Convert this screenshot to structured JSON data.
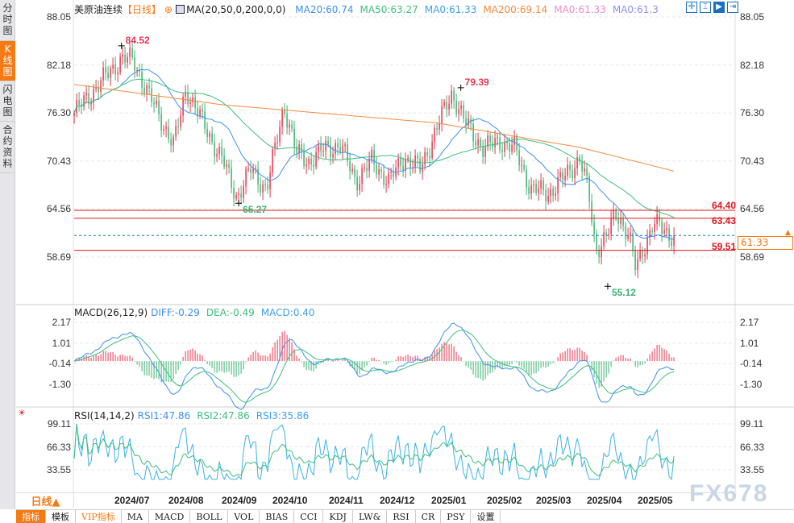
{
  "sidebar": {
    "tabs": [
      {
        "label": "分时图"
      },
      {
        "label": "K线图",
        "active": true
      },
      {
        "label": "闪电图"
      },
      {
        "label": "合约资料"
      }
    ]
  },
  "header": {
    "title": "美原油连续",
    "period_tag": "【日线】",
    "indicator": "MA(20,50,0,200,0,0)",
    "ma": [
      {
        "label": "MA20:60.74",
        "color": "#3d8ff0"
      },
      {
        "label": "MA50:63.27",
        "color": "#3cbf7e"
      },
      {
        "label": "MA0:61.33",
        "color": "#3d9ff0"
      },
      {
        "label": "MA200:69.14",
        "color": "#f5893a"
      },
      {
        "label": "MA0:61.33",
        "color": "#f08ad0"
      },
      {
        "label": "MA0:61.3",
        "color": "#8f8ff5"
      }
    ]
  },
  "toolbar_icons": [
    "crosshair-icon",
    "range-icon",
    "play-icon",
    "exit-icon"
  ],
  "price_axis": {
    "ticks": [
      "88.05",
      "82.18",
      "76.30",
      "70.43",
      "64.56",
      "58.69"
    ]
  },
  "levels": [
    {
      "label": "64.40",
      "value": 64.4
    },
    {
      "label": "63.43",
      "value": 63.43
    },
    {
      "label": "59.51",
      "value": 59.51
    }
  ],
  "current_price": {
    "label": "61.33",
    "value": 61.33
  },
  "extremes": [
    {
      "label": "84.52",
      "value": 84.52,
      "date": "2024-07-05",
      "color": "#e8364f"
    },
    {
      "label": "65.27",
      "value": 65.27,
      "date": "2024-09-10",
      "color": "#3cb371"
    },
    {
      "label": "79.39",
      "value": 79.39,
      "date": "2025-01-15",
      "color": "#e8364f"
    },
    {
      "label": "55.12",
      "value": 55.12,
      "date": "2025-04-09",
      "color": "#3cb371"
    }
  ],
  "macd": {
    "header": "MACD(26,12,9)",
    "diff": "DIFF:-0.29",
    "dea": "DEA:-0.49",
    "macd": "MACD:0.40",
    "ticks": [
      "2.17",
      "1.01",
      "-0.14",
      "-1.30"
    ]
  },
  "rsi": {
    "header": "RSI(14,14,2)",
    "rsi1": "RSI1:47.86",
    "rsi2": "RSI2:47.86",
    "rsi3": "RSI3:35.86",
    "ticks": [
      "99.11",
      "66.33",
      "33.55"
    ]
  },
  "date_axis": [
    "2024/07",
    "2024/08",
    "2024/09",
    "2024/10",
    "2024/11",
    "2024/12",
    "2025/01",
    "2025/02",
    "2025/03",
    "2025/04",
    "2025/05"
  ],
  "period_selector": "日线▲",
  "bottom_tabs": [
    "指标",
    "模板",
    "VIP指标",
    "MA",
    "MACD",
    "BOLL",
    "VOL",
    "BIAS",
    "CCI",
    "KDJ",
    "LW&",
    "RSI",
    "CR",
    "PSY",
    "设置"
  ],
  "watermark": "FX678",
  "colors": {
    "up": "#e8364f",
    "down": "#3cb371",
    "ma20": "#3d8ff0",
    "ma50": "#3cbf7e",
    "ma200": "#f5893a",
    "level": "#e0141e",
    "current": "#1a6fc4"
  },
  "chart_data": {
    "type": "candlestick",
    "title": "美原油连续",
    "y_range": [
      55.12,
      84.52
    ],
    "close_path": [
      [
        "2024-06-08",
        76.3
      ],
      [
        "2024-07-05",
        83.0
      ],
      [
        "2024-07-12",
        82.7
      ],
      [
        "2024-07-21",
        78.3
      ],
      [
        "2024-08-04",
        72.4
      ],
      [
        "2024-08-11",
        79.3
      ],
      [
        "2024-08-20",
        75.3
      ],
      [
        "2024-09-01",
        70.4
      ],
      [
        "2024-09-09",
        66.0
      ],
      [
        "2024-09-17",
        69.4
      ],
      [
        "2024-09-26",
        67.0
      ],
      [
        "2024-10-06",
        77.3
      ],
      [
        "2024-10-13",
        71.4
      ],
      [
        "2024-10-20",
        70.4
      ],
      [
        "2024-10-29",
        71.9
      ],
      [
        "2024-11-07",
        72.4
      ],
      [
        "2024-11-16",
        68.0
      ],
      [
        "2024-11-25",
        70.4
      ],
      [
        "2024-12-05",
        68.0
      ],
      [
        "2024-12-14",
        70.9
      ],
      [
        "2024-12-23",
        69.4
      ],
      [
        "2025-01-01",
        74.4
      ],
      [
        "2025-01-10",
        78.8
      ],
      [
        "2025-01-17",
        75.3
      ],
      [
        "2025-01-28",
        71.9
      ],
      [
        "2025-02-06",
        72.9
      ],
      [
        "2025-02-15",
        71.9
      ],
      [
        "2025-02-24",
        67.0
      ],
      [
        "2025-03-06",
        66.5
      ],
      [
        "2025-03-15",
        68.4
      ],
      [
        "2025-03-24",
        70.9
      ],
      [
        "2025-03-29",
        66.5
      ],
      [
        "2025-04-02",
        59.6
      ],
      [
        "2025-04-09",
        61.6
      ],
      [
        "2025-04-14",
        64.0
      ],
      [
        "2025-04-21",
        61.6
      ],
      [
        "2025-04-25",
        57.1
      ],
      [
        "2025-04-30",
        60.1
      ],
      [
        "2025-05-05",
        63.0
      ],
      [
        "2025-05-12",
        61.6
      ],
      [
        "2025-05-18",
        61.33
      ]
    ],
    "ma200_path": [
      [
        "2024-06-08",
        79.8
      ],
      [
        "2024-09-01",
        77.3
      ],
      [
        "2025-01-01",
        75.1
      ],
      [
        "2025-03-24",
        72.1
      ],
      [
        "2025-05-18",
        69.14
      ]
    ]
  }
}
